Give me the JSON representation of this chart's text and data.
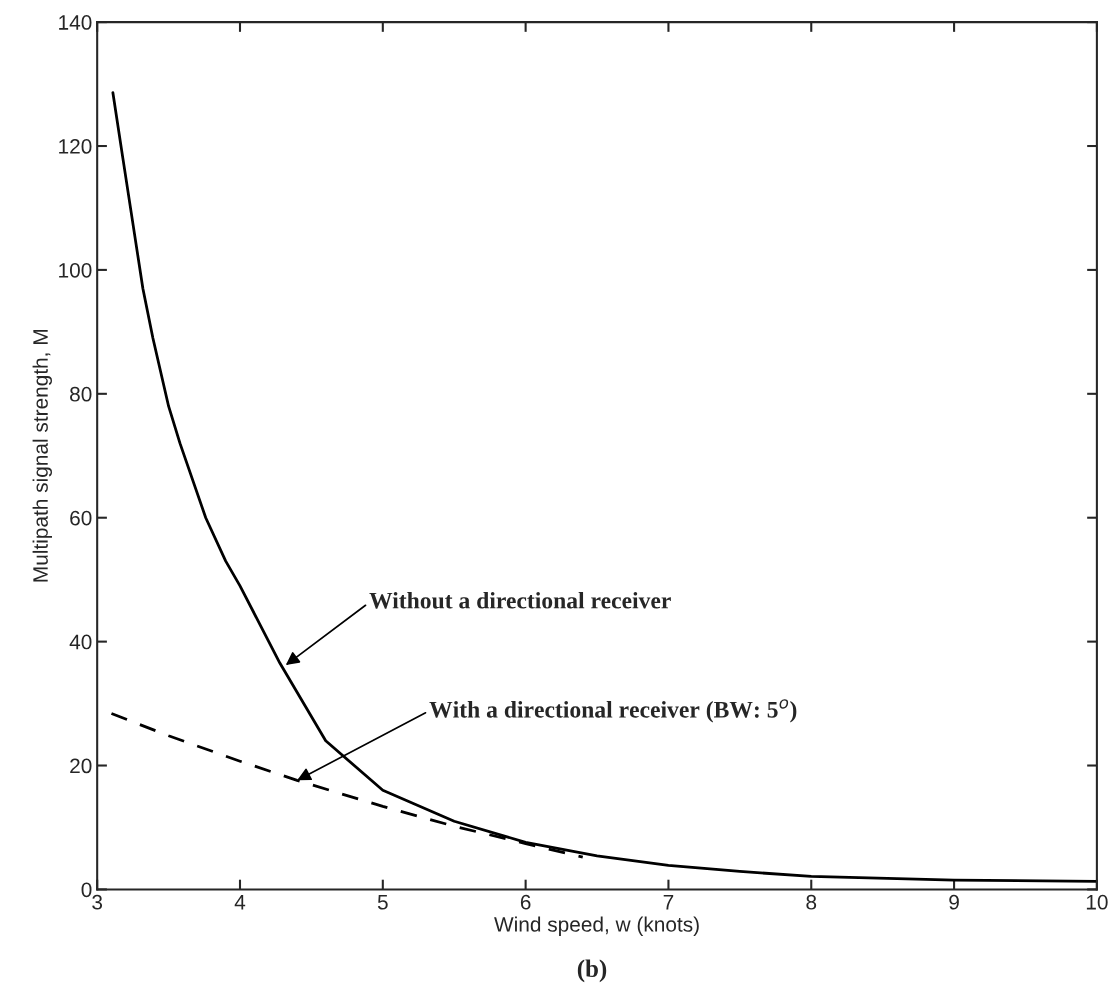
{
  "chart_data": {
    "type": "line",
    "xlabel": "Wind speed, w (knots)",
    "ylabel": "Multipath signal strength, M",
    "xlim": [
      3,
      10
    ],
    "ylim": [
      0,
      140
    ],
    "xticks": [
      3,
      4,
      5,
      6,
      7,
      8,
      9,
      10
    ],
    "yticks": [
      0,
      20,
      40,
      60,
      80,
      100,
      120,
      140
    ],
    "grid": false,
    "legend": false,
    "series": [
      {
        "color": "#000000",
        "line_style": "solid",
        "x": [
          3.11,
          3.18,
          3.24,
          3.32,
          3.39,
          3.5,
          3.58,
          3.76,
          3.9,
          4.0,
          4.28,
          4.6,
          5.0,
          5.5,
          6.0,
          6.5,
          7.0,
          7.5,
          8.0,
          9.0,
          10.0
        ],
        "values": [
          128.6,
          118,
          109,
          97,
          89,
          78,
          72,
          60,
          53,
          49,
          36.5,
          24,
          16,
          11,
          7.6,
          5.4,
          3.9,
          2.9,
          2.1,
          1.5,
          1.3
        ]
      },
      {
        "color": "#000000",
        "line_style": "dashed",
        "x": [
          3.1,
          3.5,
          4.0,
          4.4,
          5.0,
          5.5,
          6.0,
          6.4
        ],
        "values": [
          28.4,
          24.8,
          20.7,
          17.6,
          13.4,
          10.2,
          7.4,
          5.2
        ]
      }
    ],
    "annotations": [
      {
        "text": "Without a directional receiver",
        "x": 4.32,
        "y": 36.2
      },
      {
        "text": "With a directional receiver (BW: 5$^{o}$)",
        "x": 4.4,
        "y": 17.6
      },
      "(b)"
    ]
  }
}
